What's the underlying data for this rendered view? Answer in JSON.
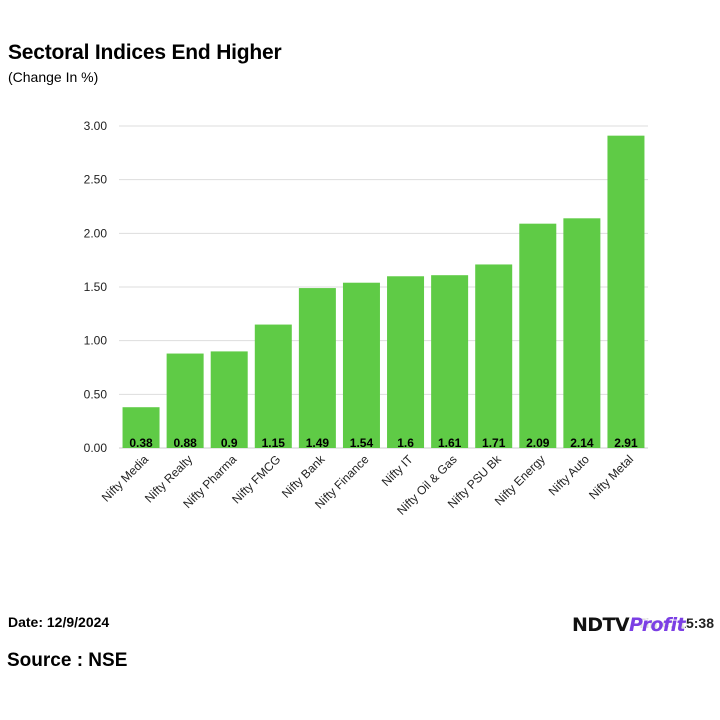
{
  "title": "Sectoral Indices End Higher",
  "subtitle": "(Change In %)",
  "date_text": "Date: 12/9/2024",
  "time_text": "Time: 15:38",
  "source_text": "Source : NSE",
  "logo": {
    "part1": "NDTV",
    "part2": "Profit"
  },
  "colors": {
    "bar": "#5fcb46",
    "grid": "#dddddd",
    "axis": "#cccccc"
  },
  "chart_data": {
    "type": "bar",
    "title": "Sectoral Indices End Higher",
    "subtitle": "(Change In %)",
    "categories": [
      "Nifty Media",
      "Nifty Realty",
      "Nifty Pharma",
      "Nifty FMCG",
      "Nifty Bank",
      "Nifty Finance",
      "Nifty IT",
      "Nifty Oil & Gas",
      "Nifty PSU Bk",
      "Nifty Energy",
      "Nifty Auto",
      "Nifty Metal"
    ],
    "values": [
      0.38,
      0.88,
      0.9,
      1.15,
      1.49,
      1.54,
      1.6,
      1.61,
      1.71,
      2.09,
      2.14,
      2.91
    ],
    "data_labels": [
      "0.38",
      "0.88",
      "0.9",
      "1.15",
      "1.49",
      "1.54",
      "1.6",
      "1.61",
      "1.71",
      "2.09",
      "2.14",
      "2.91"
    ],
    "yticks": [
      "0.00",
      "0.50",
      "1.00",
      "1.50",
      "2.00",
      "2.50",
      "3.00"
    ],
    "ylim": [
      0,
      3
    ],
    "grid": true,
    "legend": "none"
  }
}
